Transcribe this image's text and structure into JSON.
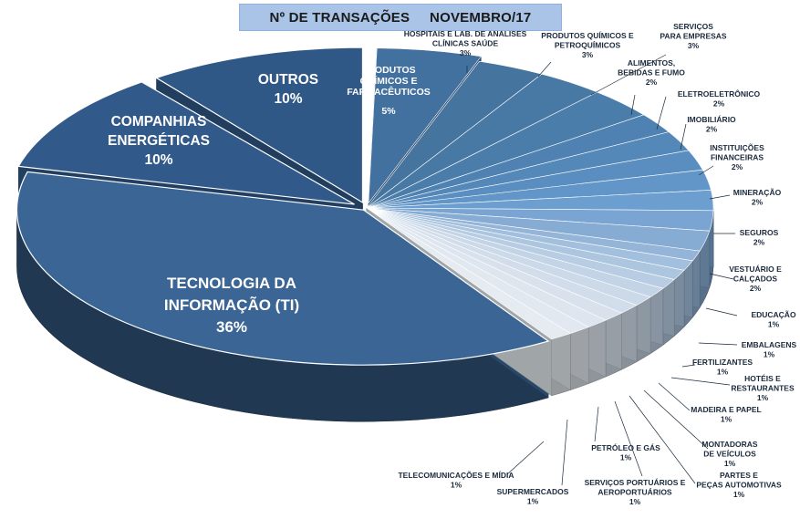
{
  "title": "Nº DE TRANSAÇÕES     NOVEMBRO/17",
  "chart_data": {
    "type": "pie",
    "title": "Nº DE TRANSAÇÕES     NOVEMBRO/17",
    "slices": [
      {
        "label": "PRODUTOS QUÍMICOS E FARMACÊUTICOS",
        "value": 5,
        "text": "5%"
      },
      {
        "label": "HOSPITAIS E LAB. DE ANALISES CLÍNICAS SAÚDE",
        "value": 3,
        "text": "3%"
      },
      {
        "label": "PRODUTOS QUÍMICOS E PETROQUÍMICOS",
        "value": 3,
        "text": "3%"
      },
      {
        "label": "SERVIÇOS PARA EMPRESAS",
        "value": 3,
        "text": "3%"
      },
      {
        "label": "ALIMENTOS, BEBIDAS E FUMO",
        "value": 2,
        "text": "2%"
      },
      {
        "label": "ELETROELETRÔNICO",
        "value": 2,
        "text": "2%"
      },
      {
        "label": "IMOBILIÁRIO",
        "value": 2,
        "text": "2%"
      },
      {
        "label": "INSTITUIÇÕES FINANCEIRAS",
        "value": 2,
        "text": "2%"
      },
      {
        "label": "MINERAÇÃO",
        "value": 2,
        "text": "2%"
      },
      {
        "label": "SEGUROS",
        "value": 2,
        "text": "2%"
      },
      {
        "label": "VESTUÁRIO E CALÇADOS",
        "value": 2,
        "text": "2%"
      },
      {
        "label": "EDUCAÇÃO",
        "value": 1,
        "text": "1%"
      },
      {
        "label": "EMBALAGENS",
        "value": 1,
        "text": "1%"
      },
      {
        "label": "FERTILIZANTES",
        "value": 1,
        "text": "1%"
      },
      {
        "label": "HOTÉIS E RESTAURANTES",
        "value": 1,
        "text": "1%"
      },
      {
        "label": "MADEIRA E PAPEL",
        "value": 1,
        "text": "1%"
      },
      {
        "label": "MONTADORAS DE VEÍCULOS",
        "value": 1,
        "text": "1%"
      },
      {
        "label": "PARTES E PEÇAS AUTOMOTIVAS",
        "value": 1,
        "text": "1%"
      },
      {
        "label": "SERVIÇOS PORTUÁRIOS E AEROPORTUÁRIOS",
        "value": 1,
        "text": "1%"
      },
      {
        "label": "PETRÓLEO E GÁS",
        "value": 1,
        "text": "1%"
      },
      {
        "label": "SUPERMERCADOS",
        "value": 1,
        "text": "1%"
      },
      {
        "label": "TELECOMUNICAÇÕES E MÍDIA",
        "value": 1,
        "text": "1%"
      },
      {
        "label": "TECNOLOGIA DA INFORMAÇÃO (TI)",
        "value": 36,
        "text": "36%"
      },
      {
        "label": "COMPANHIAS ENERGÉTICAS",
        "value": 10,
        "text": "10%"
      },
      {
        "label": "OUTROS",
        "value": 10,
        "text": "10%"
      }
    ]
  }
}
